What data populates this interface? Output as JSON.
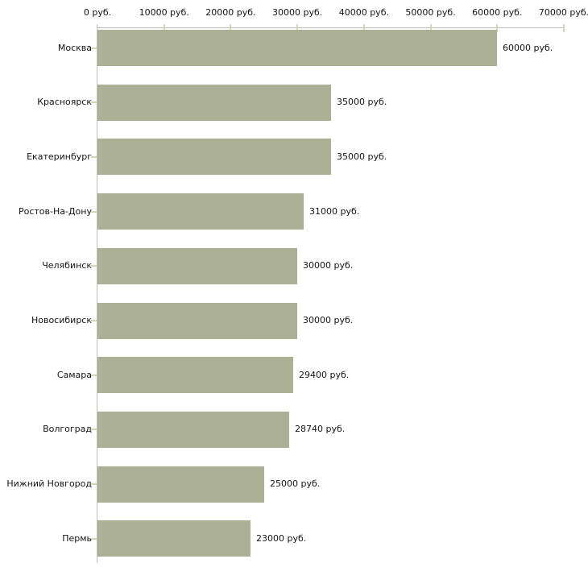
{
  "chart_data": {
    "type": "bar",
    "orientation": "horizontal",
    "categories": [
      "Москва",
      "Красноярск",
      "Екатеринбург",
      "Ростов-На-Дону",
      "Челябинск",
      "Новосибирск",
      "Самара",
      "Волгоград",
      "Нижний Новгород",
      "Пермь"
    ],
    "values": [
      60000,
      35000,
      35000,
      31000,
      30000,
      30000,
      29400,
      28740,
      25000,
      23000
    ],
    "value_labels": [
      "60000 руб.",
      "35000 руб.",
      "35000 руб.",
      "31000 руб.",
      "30000 руб.",
      "30000 руб.",
      "29400 руб.",
      "28740 руб.",
      "25000 руб.",
      "23000 руб."
    ],
    "x_axis": {
      "position": "top",
      "ticks": [
        {
          "value": 0,
          "label": "0 руб."
        },
        {
          "value": 10000,
          "label": "10000 руб."
        },
        {
          "value": 20000,
          "label": "20000 руб."
        },
        {
          "value": 30000,
          "label": "30000 руб."
        },
        {
          "value": 40000,
          "label": "40000 руб."
        },
        {
          "value": 50000,
          "label": "50000 руб."
        },
        {
          "value": 60000,
          "label": "60000 руб."
        },
        {
          "value": 70000,
          "label": "70000 руб."
        }
      ],
      "xlim": [
        0,
        70000
      ]
    },
    "grid": false,
    "legend": false,
    "colors": {
      "bar": "#acb196",
      "axis_line": "#bcbcbc",
      "tick_mark": "#d8d4b4",
      "text": "#141414",
      "background": "#ffffff"
    }
  }
}
